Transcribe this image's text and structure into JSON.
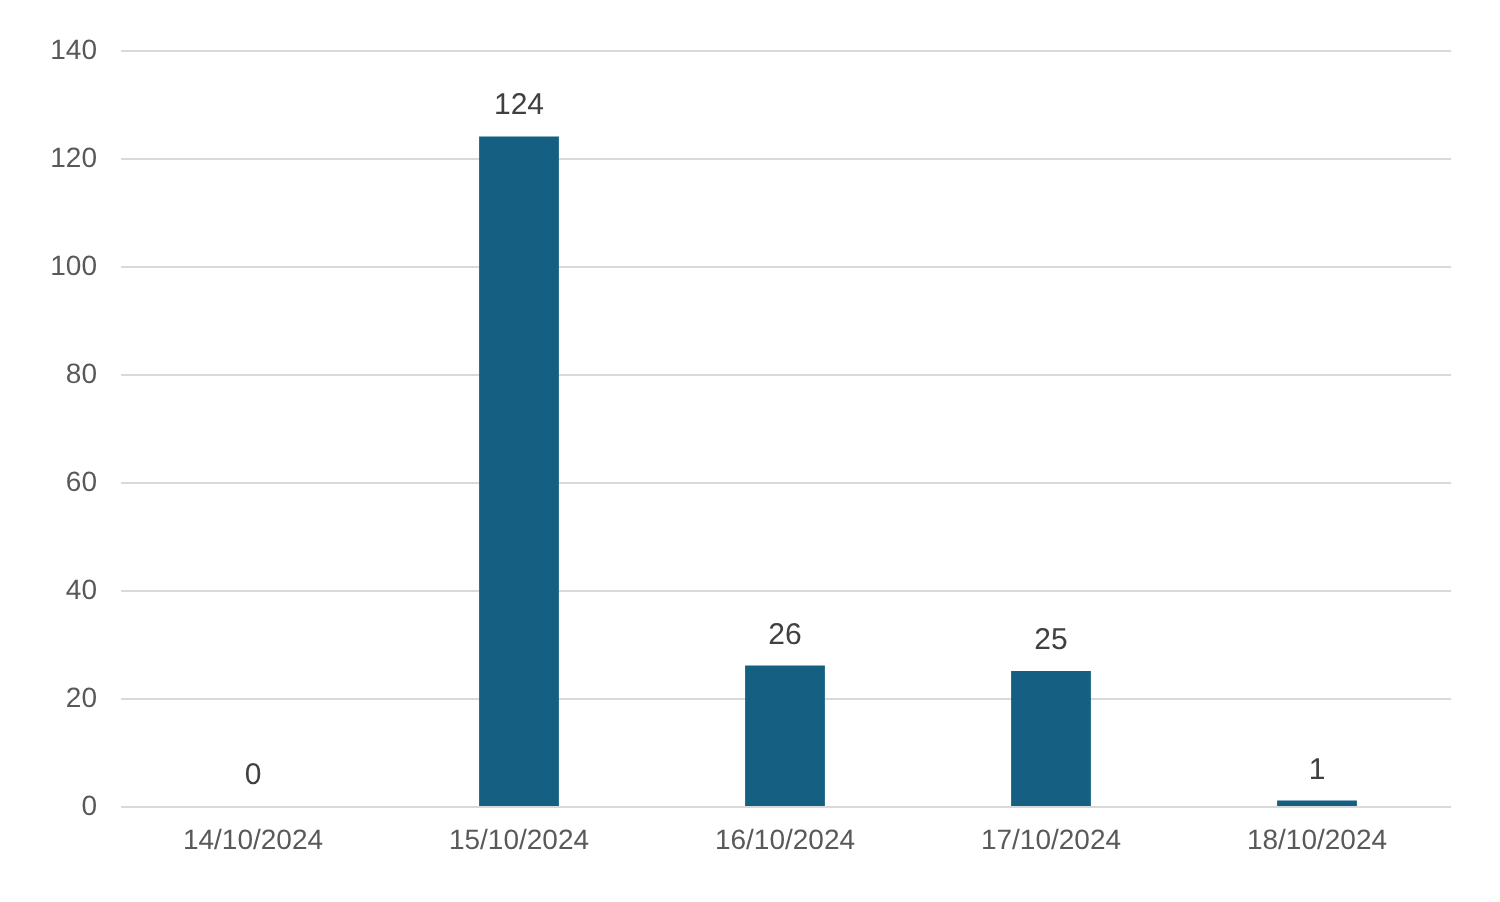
{
  "chart_data": {
    "type": "bar",
    "categories": [
      "14/10/2024",
      "15/10/2024",
      "16/10/2024",
      "17/10/2024",
      "18/10/2024"
    ],
    "values": [
      0,
      124,
      26,
      25,
      1
    ],
    "color": "#156082",
    "ylim": [
      0,
      140
    ],
    "yticks": [
      0,
      20,
      40,
      60,
      80,
      100,
      120,
      140
    ],
    "grid": "y",
    "data_labels": true
  }
}
